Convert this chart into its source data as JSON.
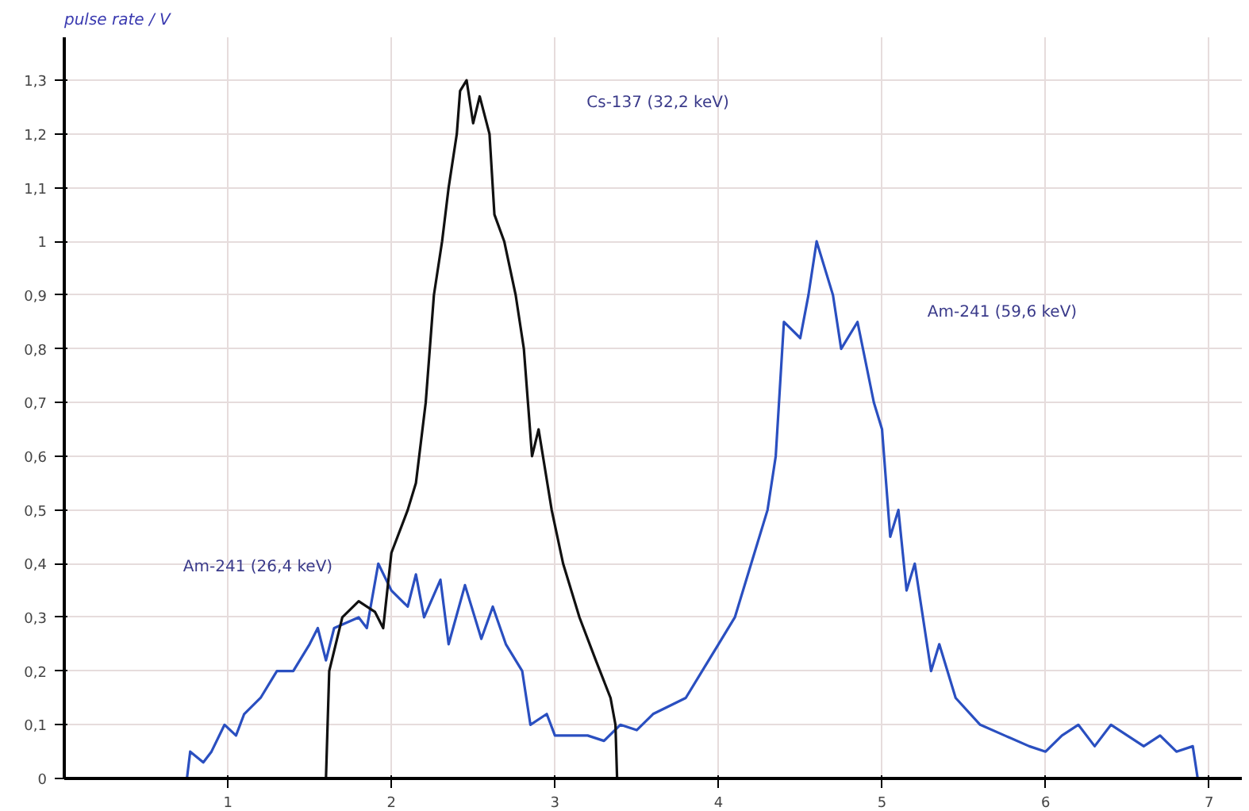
{
  "chart_data": {
    "type": "line",
    "ylabel": "pulse rate / V",
    "xlim": [
      0,
      7.2
    ],
    "ylim": [
      0,
      1.38
    ],
    "xticks": [
      1,
      2,
      3,
      4,
      5,
      6,
      7
    ],
    "yticks": [
      0,
      {
        "value": 0.1,
        "label": "0,1"
      },
      {
        "value": 0.2,
        "label": "0,2"
      },
      {
        "value": 0.3,
        "label": "0,3"
      },
      {
        "value": 0.4,
        "label": "0,4"
      },
      {
        "value": 0.5,
        "label": "0,5"
      },
      {
        "value": 0.6,
        "label": "0,6"
      },
      {
        "value": 0.7,
        "label": "0,7"
      },
      {
        "value": 0.8,
        "label": "0,8"
      },
      {
        "value": 0.9,
        "label": "0,9"
      },
      1,
      {
        "value": 1.1,
        "label": "1,1"
      },
      {
        "value": 1.2,
        "label": "1,2"
      },
      {
        "value": 1.3,
        "label": "1,3"
      }
    ],
    "grid": true,
    "line_style": "solid",
    "series": [
      {
        "color": "#2a4fc0",
        "x": [
          0,
          0.75,
          0.77,
          0.85,
          0.9,
          0.98,
          1.05,
          1.1,
          1.2,
          1.3,
          1.4,
          1.5,
          1.55,
          1.6,
          1.65,
          1.8,
          1.85,
          1.92,
          2.0,
          2.1,
          2.15,
          2.2,
          2.3,
          2.35,
          2.45,
          2.55,
          2.62,
          2.7,
          2.8,
          2.85,
          2.95,
          3.0,
          3.2,
          3.3,
          3.4,
          3.5,
          3.6,
          3.8,
          3.9,
          4.0,
          4.1,
          4.2,
          4.3,
          4.35,
          4.4,
          4.5,
          4.55,
          4.6,
          4.7,
          4.75,
          4.85,
          4.95,
          5.0,
          5.05,
          5.1,
          5.15,
          5.2,
          5.3,
          5.35,
          5.45,
          5.6,
          5.75,
          5.9,
          6.0,
          6.1,
          6.2,
          6.3,
          6.4,
          6.6,
          6.7,
          6.8,
          6.9,
          6.93,
          7.05
        ],
        "values": [
          0,
          0,
          0.05,
          0.03,
          0.05,
          0.1,
          0.08,
          0.12,
          0.15,
          0.2,
          0.2,
          0.25,
          0.28,
          0.22,
          0.28,
          0.3,
          0.28,
          0.4,
          0.35,
          0.32,
          0.38,
          0.3,
          0.37,
          0.25,
          0.36,
          0.26,
          0.32,
          0.25,
          0.2,
          0.1,
          0.12,
          0.08,
          0.08,
          0.07,
          0.1,
          0.09,
          0.12,
          0.15,
          0.2,
          0.25,
          0.3,
          0.4,
          0.5,
          0.6,
          0.85,
          0.82,
          0.9,
          1.0,
          0.9,
          0.8,
          0.85,
          0.7,
          0.65,
          0.45,
          0.5,
          0.35,
          0.4,
          0.2,
          0.25,
          0.15,
          0.1,
          0.08,
          0.06,
          0.05,
          0.08,
          0.1,
          0.06,
          0.1,
          0.06,
          0.08,
          0.05,
          0.06,
          0,
          0
        ]
      },
      {
        "color": "#111111",
        "x": [
          0,
          1.6,
          1.62,
          1.7,
          1.8,
          1.9,
          1.95,
          2.0,
          2.1,
          2.15,
          2.21,
          2.26,
          2.31,
          2.35,
          2.4,
          2.42,
          2.46,
          2.5,
          2.54,
          2.6,
          2.63,
          2.69,
          2.76,
          2.81,
          2.86,
          2.9,
          2.98,
          3.05,
          3.15,
          3.25,
          3.34,
          3.37,
          3.38,
          7.05
        ],
        "values": [
          0,
          0,
          0.2,
          0.3,
          0.33,
          0.31,
          0.28,
          0.42,
          0.5,
          0.55,
          0.7,
          0.9,
          1.0,
          1.1,
          1.2,
          1.28,
          1.3,
          1.22,
          1.27,
          1.2,
          1.05,
          1.0,
          0.9,
          0.8,
          0.6,
          0.65,
          0.5,
          0.4,
          0.3,
          0.22,
          0.15,
          0.1,
          0,
          0
        ]
      }
    ],
    "annotations": [
      "Cs-137 (32,2 keV)",
      "Am-241 (59,6 keV)",
      "Am-241 (26,4 keV)"
    ]
  }
}
